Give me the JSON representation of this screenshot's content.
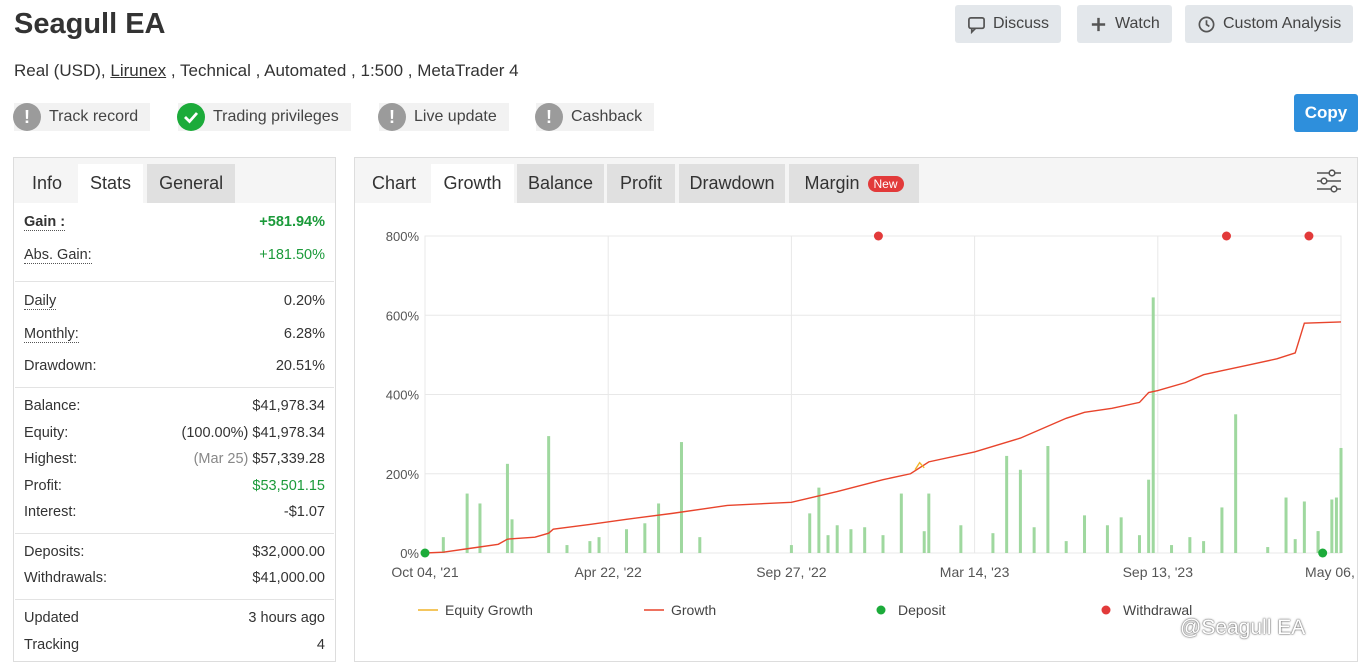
{
  "header": {
    "title": "Seagull EA",
    "subtitle_prefix": "Real (USD),",
    "broker_link": "Lirunex",
    "subtitle_suffix": ", Technical , Automated , 1:500 , MetaTrader 4",
    "buttons": {
      "discuss": "Discuss",
      "watch": "Watch",
      "custom_analysis": "Custom Analysis"
    },
    "copy": "Copy"
  },
  "badges": [
    {
      "label": "Track record",
      "status": "warning"
    },
    {
      "label": "Trading privileges",
      "status": "ok"
    },
    {
      "label": "Live update",
      "status": "warning"
    },
    {
      "label": "Cashback",
      "status": "warning"
    }
  ],
  "left_tabs": [
    "Info",
    "Stats",
    "General"
  ],
  "stats": {
    "gain_label": "Gain :",
    "gain": "+581.94%",
    "abs_gain_label": "Abs. Gain:",
    "abs_gain": "+181.50%",
    "daily_label": "Daily",
    "daily": "0.20%",
    "monthly_label": "Monthly:",
    "monthly": "6.28%",
    "drawdown_label": "Drawdown:",
    "drawdown": "20.51%",
    "balance_label": "Balance:",
    "balance": "$41,978.34",
    "equity_label": "Equity:",
    "equity_pct": "(100.00%)",
    "equity": "$41,978.34",
    "highest_label": "Highest:",
    "highest_date": "(Mar 25)",
    "highest": "$57,339.28",
    "profit_label": "Profit:",
    "profit": "$53,501.15",
    "interest_label": "Interest:",
    "interest": "-$1.07",
    "deposits_label": "Deposits:",
    "deposits": "$32,000.00",
    "withdrawals_label": "Withdrawals:",
    "withdrawals": "$41,000.00",
    "updated_label": "Updated",
    "updated": "3 hours ago",
    "tracking_label": "Tracking",
    "tracking": "4"
  },
  "chart_tabs": {
    "chart": "Chart",
    "growth": "Growth",
    "balance": "Balance",
    "profit": "Profit",
    "drawdown": "Drawdown",
    "margin": "Margin",
    "new_badge": "New"
  },
  "colors": {
    "growth": "#e8442c",
    "equity": "#f0b429",
    "deposit": "#1cab3a",
    "withdrawal": "#e23a3a",
    "bars": "#9fd89f",
    "copy": "#2e8fdc"
  },
  "watermark": "@Seagull EA",
  "chart_data": {
    "type": "line",
    "y_ticks": [
      "800%",
      "600%",
      "400%",
      "200%",
      "0%"
    ],
    "ylim": [
      0,
      800
    ],
    "x_ticks": [
      "Oct 04, '21",
      "Apr 22, '22",
      "Sep 27, '22",
      "Mar 14, '23",
      "Sep 13, '23",
      "May 06, '24"
    ],
    "legend": [
      "Equity Growth",
      "Growth",
      "Deposit",
      "Withdrawal"
    ],
    "series": [
      {
        "name": "Growth",
        "x": [
          0,
          0.02,
          0.05,
          0.08,
          0.09,
          0.12,
          0.135,
          0.14,
          0.18,
          0.22,
          0.27,
          0.33,
          0.4,
          0.45,
          0.5,
          0.53,
          0.55,
          0.6,
          0.65,
          0.7,
          0.72,
          0.75,
          0.78,
          0.79,
          0.8,
          0.83,
          0.85,
          0.87,
          0.9,
          0.93,
          0.95,
          0.96,
          1.0
        ],
        "y": [
          0,
          2,
          12,
          22,
          35,
          40,
          50,
          60,
          72,
          85,
          100,
          120,
          128,
          155,
          185,
          200,
          230,
          255,
          290,
          340,
          355,
          365,
          380,
          405,
          410,
          430,
          450,
          460,
          475,
          490,
          505,
          580,
          583
        ]
      },
      {
        "name": "Equity Growth",
        "x": [
          0.535,
          0.54,
          0.545
        ],
        "y": [
          210,
          228,
          215
        ]
      }
    ],
    "bars": [
      [
        0.02,
        40
      ],
      [
        0.046,
        150
      ],
      [
        0.06,
        125
      ],
      [
        0.09,
        225
      ],
      [
        0.095,
        85
      ],
      [
        0.135,
        295
      ],
      [
        0.155,
        20
      ],
      [
        0.18,
        30
      ],
      [
        0.19,
        40
      ],
      [
        0.22,
        60
      ],
      [
        0.24,
        75
      ],
      [
        0.255,
        125
      ],
      [
        0.28,
        280
      ],
      [
        0.3,
        40
      ],
      [
        0.4,
        20
      ],
      [
        0.42,
        100
      ],
      [
        0.43,
        165
      ],
      [
        0.44,
        45
      ],
      [
        0.45,
        70
      ],
      [
        0.465,
        60
      ],
      [
        0.48,
        65
      ],
      [
        0.5,
        45
      ],
      [
        0.52,
        150
      ],
      [
        0.545,
        55
      ],
      [
        0.55,
        150
      ],
      [
        0.585,
        70
      ],
      [
        0.62,
        50
      ],
      [
        0.635,
        245
      ],
      [
        0.65,
        210
      ],
      [
        0.665,
        65
      ],
      [
        0.68,
        270
      ],
      [
        0.7,
        30
      ],
      [
        0.72,
        95
      ],
      [
        0.745,
        70
      ],
      [
        0.76,
        90
      ],
      [
        0.78,
        45
      ],
      [
        0.79,
        185
      ],
      [
        0.795,
        645
      ],
      [
        0.85,
        30
      ],
      [
        0.815,
        20
      ],
      [
        0.835,
        40
      ],
      [
        0.87,
        115
      ],
      [
        0.885,
        350
      ],
      [
        0.94,
        140
      ],
      [
        0.95,
        35
      ],
      [
        0.96,
        130
      ],
      [
        0.975,
        55
      ],
      [
        0.99,
        135
      ],
      [
        0.995,
        140
      ],
      [
        1.0,
        265
      ],
      [
        0.92,
        15
      ],
      [
        0.975,
        55
      ]
    ],
    "deposits": [
      [
        0,
        0
      ],
      [
        0.98,
        0
      ]
    ],
    "withdrawals": [
      [
        0.495,
        800
      ],
      [
        0.875,
        800
      ],
      [
        0.965,
        800
      ]
    ]
  }
}
